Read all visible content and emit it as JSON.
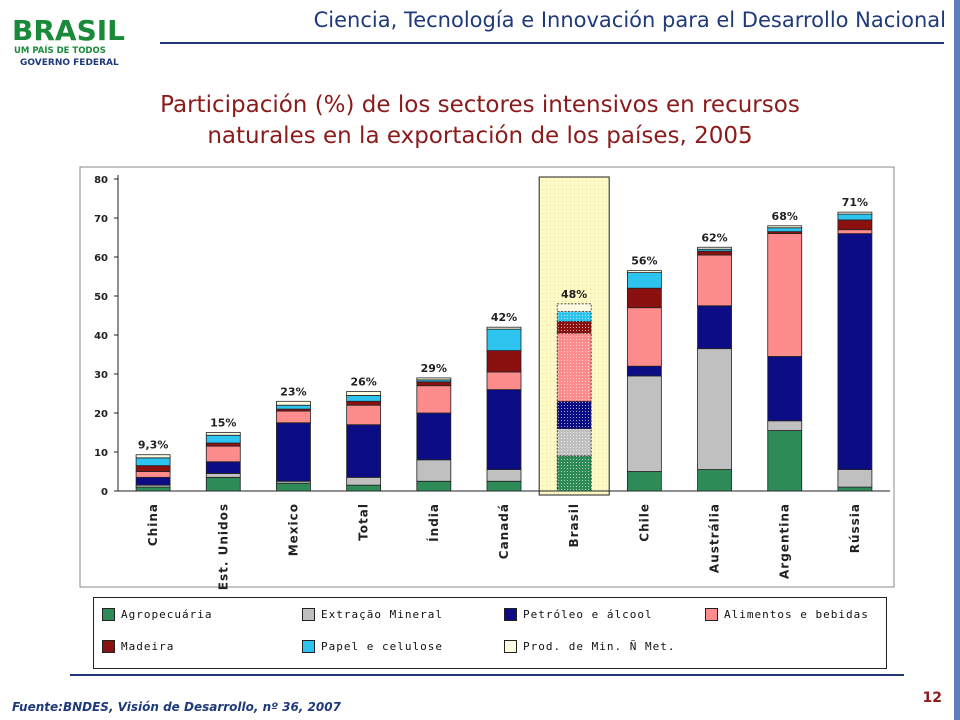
{
  "header": {
    "title": "Ciencia, Tecnología e Innovación para el Desarrollo Nacional",
    "logo": {
      "main_text": "BRASIL",
      "tagline": "UM PAÍS DE TODOS",
      "subtitle": "GOVERNO FEDERAL"
    }
  },
  "chart_data": {
    "type": "bar",
    "stacked": true,
    "title_lines": [
      "Participación (%) de los sectores intensivos en recursos",
      "naturales en la exportación de los países, 2005"
    ],
    "categories": [
      "China",
      "Est. Unidos",
      "Mexico",
      "Total",
      "Índia",
      "Canadá",
      "Brasil",
      "Chile",
      "Austrália",
      "Argentina",
      "Rússia"
    ],
    "totals_labels": [
      "9,3%",
      "15%",
      "23%",
      "26%",
      "29%",
      "42%",
      "48%",
      "56%",
      "62%",
      "68%",
      "71%"
    ],
    "highlight_category": "Brasil",
    "ylim": [
      0,
      80
    ],
    "yticks": [
      0,
      10,
      20,
      30,
      40,
      50,
      60,
      70,
      80
    ],
    "grid": false,
    "legend_position": "bottom",
    "series": [
      {
        "name": "Agropecuária",
        "color": "#2e8b57",
        "values": [
          1.0,
          3.5,
          2.0,
          1.5,
          2.5,
          2.5,
          9.0,
          5.0,
          5.5,
          15.5,
          1.0
        ]
      },
      {
        "name": "Extração Mineral",
        "color": "#c0c0c0",
        "values": [
          0.5,
          1.0,
          0.5,
          2.0,
          5.5,
          3.0,
          7.0,
          24.5,
          31.0,
          2.5,
          4.5
        ]
      },
      {
        "name": "Petróleo e álcool",
        "color": "#0c0c84",
        "values": [
          2.0,
          3.0,
          15.0,
          13.5,
          12.0,
          20.5,
          7.0,
          2.5,
          11.0,
          16.5,
          60.5
        ]
      },
      {
        "name": "Alimentos e bebidas",
        "color": "#ff8c8c",
        "values": [
          1.5,
          4.0,
          3.0,
          5.0,
          7.0,
          4.5,
          17.5,
          15.0,
          13.0,
          31.5,
          1.0
        ]
      },
      {
        "name": "Madeira",
        "color": "#8b1010",
        "values": [
          1.5,
          0.8,
          0.5,
          1.0,
          1.0,
          5.5,
          3.0,
          5.0,
          1.0,
          0.5,
          2.5
        ]
      },
      {
        "name": "Papel e celulose",
        "color": "#2ec4f0",
        "values": [
          2.0,
          2.0,
          1.0,
          1.5,
          0.5,
          5.5,
          2.5,
          4.0,
          0.5,
          1.0,
          1.5
        ]
      },
      {
        "name": "Prod. de Min. Ñ Met.",
        "color": "#fffbe0",
        "values": [
          0.8,
          0.7,
          1.0,
          1.0,
          0.5,
          0.5,
          2.0,
          0.5,
          0.5,
          0.5,
          0.5
        ]
      }
    ]
  },
  "footer": {
    "source": "Fuente:BNDES, Visión de Desarrollo, nº 36, 2007",
    "page_number": "12"
  }
}
